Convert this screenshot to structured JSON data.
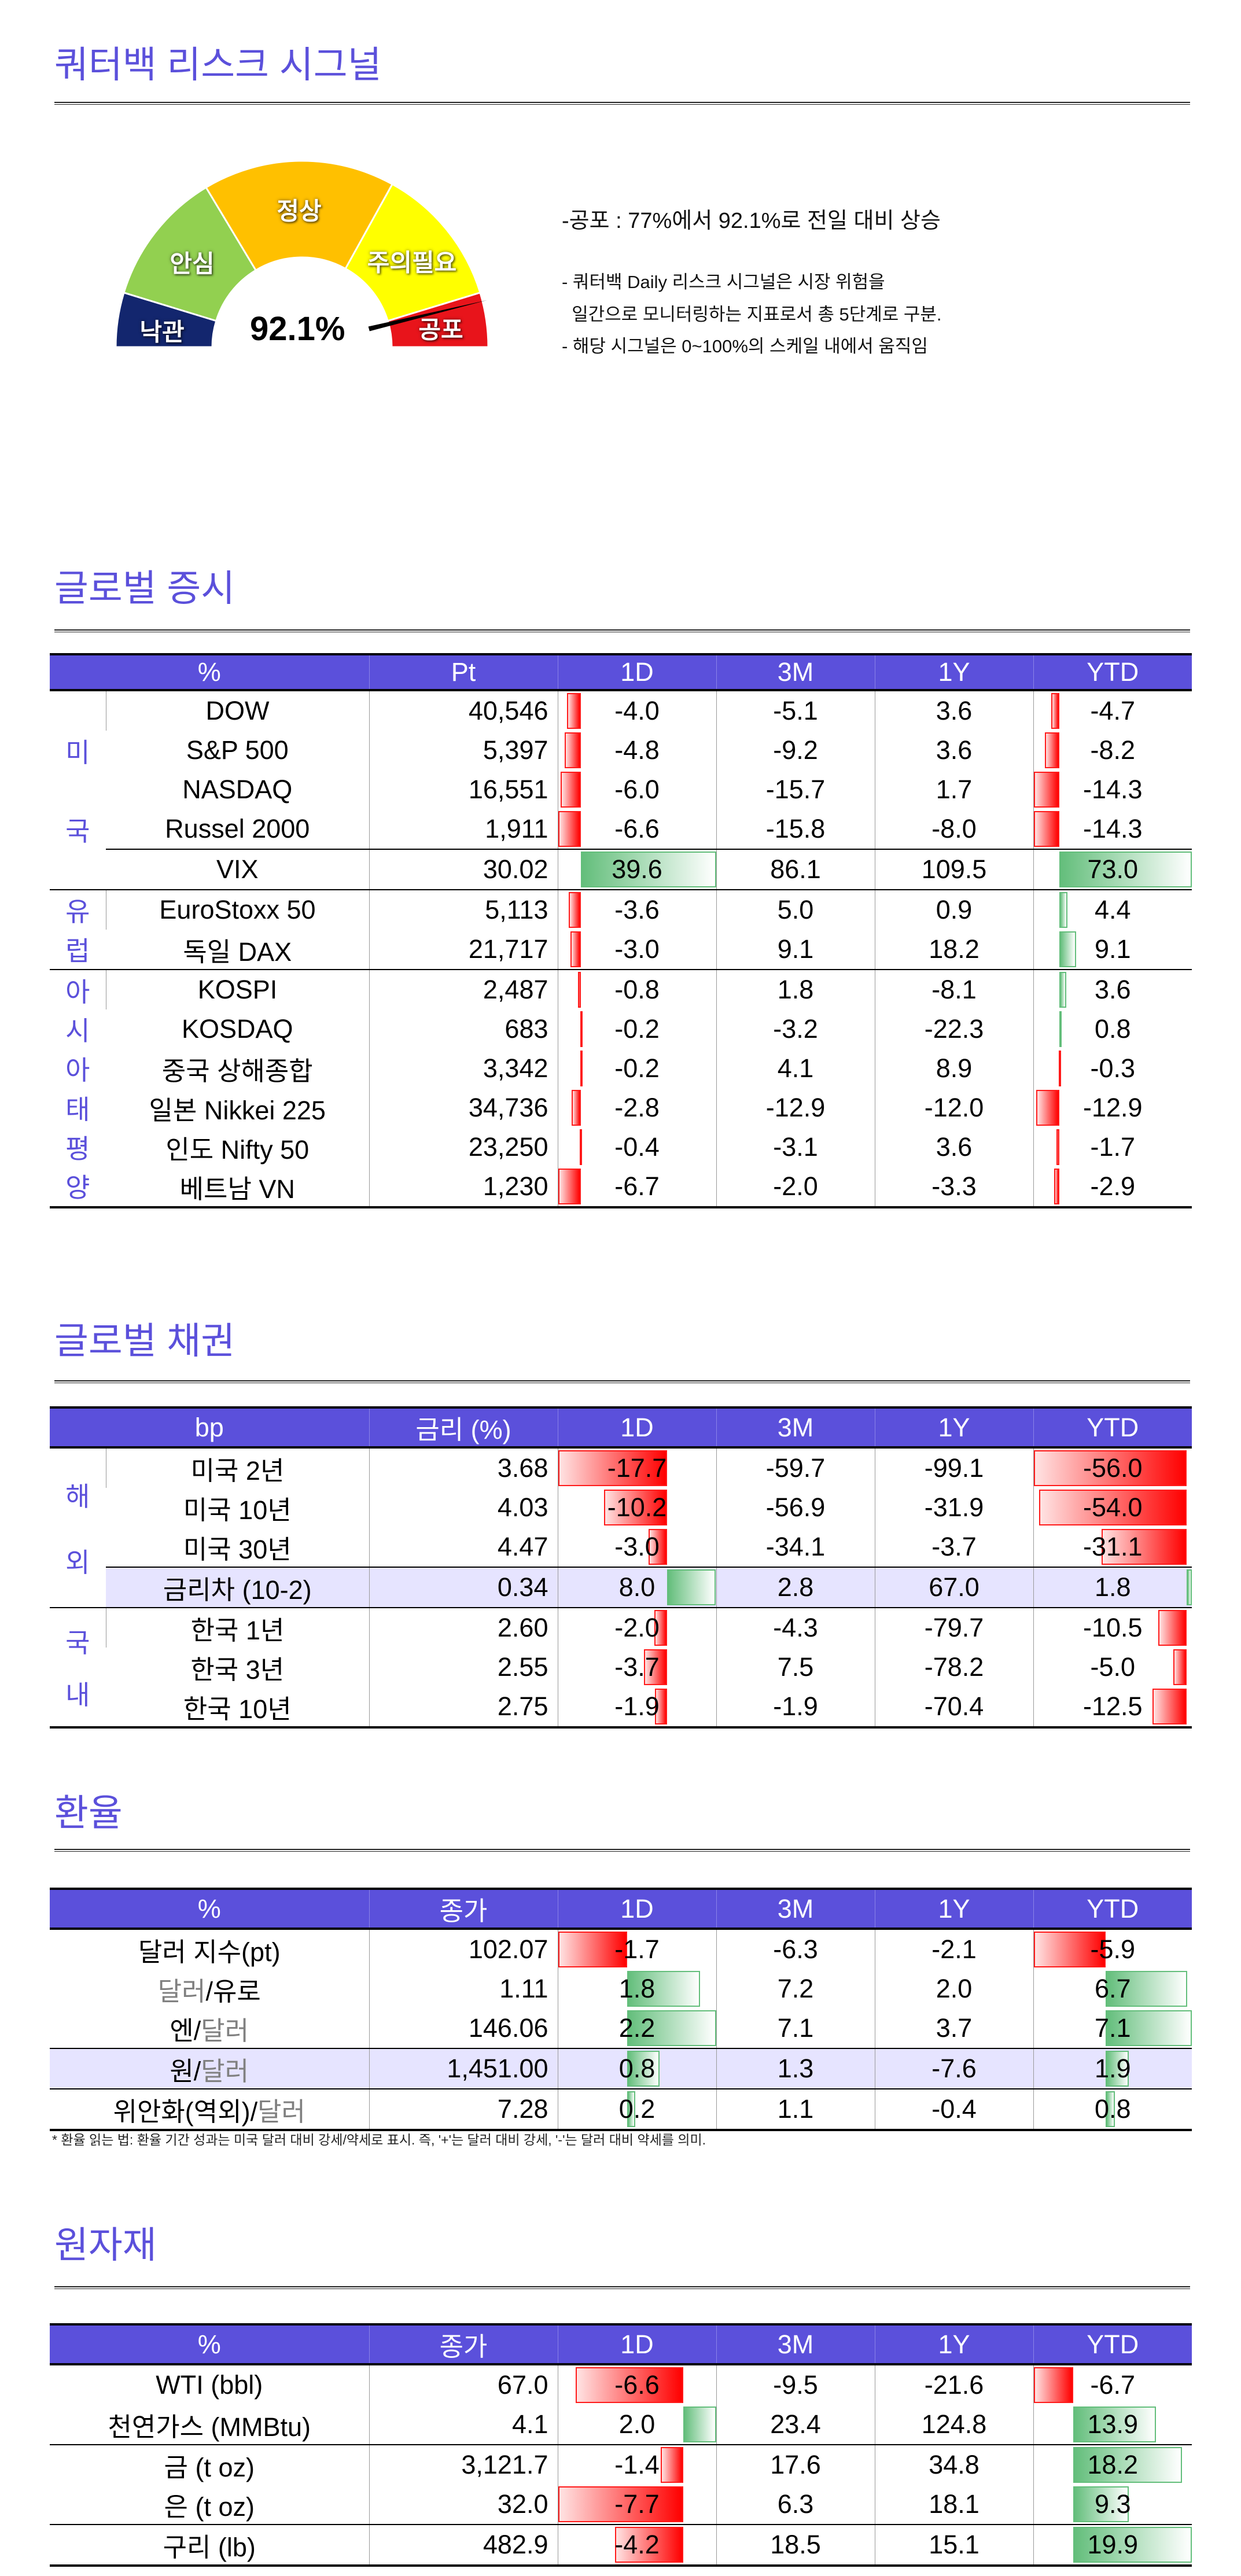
{
  "risk_signal": {
    "title": "쿼터백 리스크 시그널",
    "gauge": {
      "value_label": "92.1%",
      "value": 92.1,
      "segments": [
        "낙관",
        "안심",
        "정상",
        "주의필요",
        "공포"
      ],
      "colors": {
        "낙관": "#13266E",
        "안심": "#92D050",
        "정상": "#FFC000",
        "주의필요": "#FFFF00",
        "공포": "#E8141B"
      }
    },
    "headline": "-공포 : 77%에서 92.1%로 전일 대비 상승",
    "notes": [
      "- 쿼터백 Daily 리스크 시그널은 시장 위험을",
      "  일간으로 모니터링하는 지표로서 총 5단계로 구분.",
      "- 해당 시그널은 0~100%의 스케일 내에서 움직임"
    ]
  },
  "stocks": {
    "title": "글로벌 증시",
    "headers": [
      "%",
      "Pt",
      "1D",
      "3M",
      "1Y",
      "YTD"
    ],
    "groups": [
      {
        "label": "미국",
        "rows": [
          {
            "name": "DOW",
            "value": "40,546",
            "d1": "-4.0",
            "m3": "-5.1",
            "y1": "3.6",
            "ytd": "-4.7"
          },
          {
            "name": "S&P 500",
            "value": "5,397",
            "d1": "-4.8",
            "m3": "-9.2",
            "y1": "3.6",
            "ytd": "-8.2"
          },
          {
            "name": "NASDAQ",
            "value": "16,551",
            "d1": "-6.0",
            "m3": "-15.7",
            "y1": "1.7",
            "ytd": "-14.3"
          },
          {
            "name": "Russel 2000",
            "value": "1,911",
            "d1": "-6.6",
            "m3": "-15.8",
            "y1": "-8.0",
            "ytd": "-14.3"
          },
          {
            "name": "VIX",
            "value": "30.02",
            "d1": "39.6",
            "m3": "86.1",
            "y1": "109.5",
            "ytd": "73.0",
            "divider_above": true
          }
        ]
      },
      {
        "label": "유럽",
        "rows": [
          {
            "name": "EuroStoxx 50",
            "value": "5,113",
            "d1": "-3.6",
            "m3": "5.0",
            "y1": "0.9",
            "ytd": "4.4"
          },
          {
            "name": "독일 DAX",
            "value": "21,717",
            "d1": "-3.0",
            "m3": "9.1",
            "y1": "18.2",
            "ytd": "9.1"
          }
        ]
      },
      {
        "label": "아시아태평양",
        "rows": [
          {
            "name": "KOSPI",
            "value": "2,487",
            "d1": "-0.8",
            "m3": "1.8",
            "y1": "-8.1",
            "ytd": "3.6"
          },
          {
            "name": "KOSDAQ",
            "value": "683",
            "d1": "-0.2",
            "m3": "-3.2",
            "y1": "-22.3",
            "ytd": "0.8"
          },
          {
            "name": "중국 상해종합",
            "value": "3,342",
            "d1": "-0.2",
            "m3": "4.1",
            "y1": "8.9",
            "ytd": "-0.3"
          },
          {
            "name": "일본 Nikkei 225",
            "value": "34,736",
            "d1": "-2.8",
            "m3": "-12.9",
            "y1": "-12.0",
            "ytd": "-12.9"
          },
          {
            "name": "인도 Nifty 50",
            "value": "23,250",
            "d1": "-0.4",
            "m3": "-3.1",
            "y1": "3.6",
            "ytd": "-1.7"
          },
          {
            "name": "베트남 VN",
            "value": "1,230",
            "d1": "-6.7",
            "m3": "-2.0",
            "y1": "-3.3",
            "ytd": "-2.9"
          }
        ]
      }
    ]
  },
  "bonds": {
    "title": "글로벌 채권",
    "headers": [
      "bp",
      "금리 (%)",
      "1D",
      "3M",
      "1Y",
      "YTD"
    ],
    "groups": [
      {
        "label": "해외",
        "rows": [
          {
            "name": "미국 2년",
            "value": "3.68",
            "d1": "-17.7",
            "m3": "-59.7",
            "y1": "-99.1",
            "ytd": "-56.0"
          },
          {
            "name": "미국 10년",
            "value": "4.03",
            "d1": "-10.2",
            "m3": "-56.9",
            "y1": "-31.9",
            "ytd": "-54.0"
          },
          {
            "name": "미국 30년",
            "value": "4.47",
            "d1": "-3.0",
            "m3": "-34.1",
            "y1": "-3.7",
            "ytd": "-31.1"
          },
          {
            "name": "금리차 (10-2)",
            "value": "0.34",
            "d1": "8.0",
            "m3": "2.8",
            "y1": "67.0",
            "ytd": "1.8",
            "divider_above": true,
            "highlight": true
          }
        ]
      },
      {
        "label": "국내",
        "rows": [
          {
            "name": "한국 1년",
            "value": "2.60",
            "d1": "-2.0",
            "m3": "-4.3",
            "y1": "-79.7",
            "ytd": "-10.5"
          },
          {
            "name": "한국 3년",
            "value": "2.55",
            "d1": "-3.7",
            "m3": "7.5",
            "y1": "-78.2",
            "ytd": "-5.0"
          },
          {
            "name": "한국 10년",
            "value": "2.75",
            "d1": "-1.9",
            "m3": "-1.9",
            "y1": "-70.4",
            "ytd": "-12.5"
          }
        ]
      }
    ]
  },
  "fx": {
    "title": "환율",
    "headers": [
      "%",
      "종가",
      "1D",
      "3M",
      "1Y",
      "YTD"
    ],
    "rows": [
      {
        "name_parts": [
          {
            "text": "달러 지수(pt)",
            "muted": false
          }
        ],
        "value": "102.07",
        "d1": "-1.7",
        "m3": "-6.3",
        "y1": "-2.1",
        "ytd": "-5.9"
      },
      {
        "name_parts": [
          {
            "text": "달러",
            "muted": true
          },
          {
            "text": "/유로",
            "muted": false
          }
        ],
        "value": "1.11",
        "d1": "1.8",
        "m3": "7.2",
        "y1": "2.0",
        "ytd": "6.7"
      },
      {
        "name_parts": [
          {
            "text": "엔/",
            "muted": false
          },
          {
            "text": "달러",
            "muted": true
          }
        ],
        "value": "146.06",
        "d1": "2.2",
        "m3": "7.1",
        "y1": "3.7",
        "ytd": "7.1"
      },
      {
        "name_parts": [
          {
            "text": "원/",
            "muted": false
          },
          {
            "text": "달러",
            "muted": true
          }
        ],
        "value": "1,451.00",
        "d1": "0.8",
        "m3": "1.3",
        "y1": "-7.6",
        "ytd": "1.9",
        "divider_above": true,
        "highlight": true
      },
      {
        "name_parts": [
          {
            "text": "위안화(역외)/",
            "muted": false
          },
          {
            "text": "달러",
            "muted": true
          }
        ],
        "value": "7.28",
        "d1": "0.2",
        "m3": "1.1",
        "y1": "-0.4",
        "ytd": "0.8",
        "divider_above": true
      }
    ],
    "footnote": "* 환율 읽는 법: 환율 기간 성과는 미국 달러 대비 강세/약세로 표시. 즉, '+'는 달러 대비 강세, '-'는 달러 대비 약세를 의미."
  },
  "commodities": {
    "title": "원자재",
    "headers": [
      "%",
      "종가",
      "1D",
      "3M",
      "1Y",
      "YTD"
    ],
    "rows": [
      {
        "name_parts": [
          {
            "text": "WTI (bbl)",
            "muted": false
          }
        ],
        "value": "67.0",
        "d1": "-6.6",
        "m3": "-9.5",
        "y1": "-21.6",
        "ytd": "-6.7"
      },
      {
        "name_parts": [
          {
            "text": "천연가스 (MMBtu)",
            "muted": false
          }
        ],
        "value": "4.1",
        "d1": "2.0",
        "m3": "23.4",
        "y1": "124.8",
        "ytd": "13.9"
      },
      {
        "name_parts": [
          {
            "text": "금 (t oz)",
            "muted": false
          }
        ],
        "value": "3,121.7",
        "d1": "-1.4",
        "m3": "17.6",
        "y1": "34.8",
        "ytd": "18.2",
        "divider_above": true
      },
      {
        "name_parts": [
          {
            "text": "은 (t oz)",
            "muted": false
          }
        ],
        "value": "32.0",
        "d1": "-7.7",
        "m3": "6.3",
        "y1": "18.1",
        "ytd": "9.3"
      },
      {
        "name_parts": [
          {
            "text": "구리 (lb)",
            "muted": false
          }
        ],
        "value": "482.9",
        "d1": "-4.2",
        "m3": "18.5",
        "y1": "15.1",
        "ytd": "19.9",
        "divider_above": true
      }
    ]
  }
}
